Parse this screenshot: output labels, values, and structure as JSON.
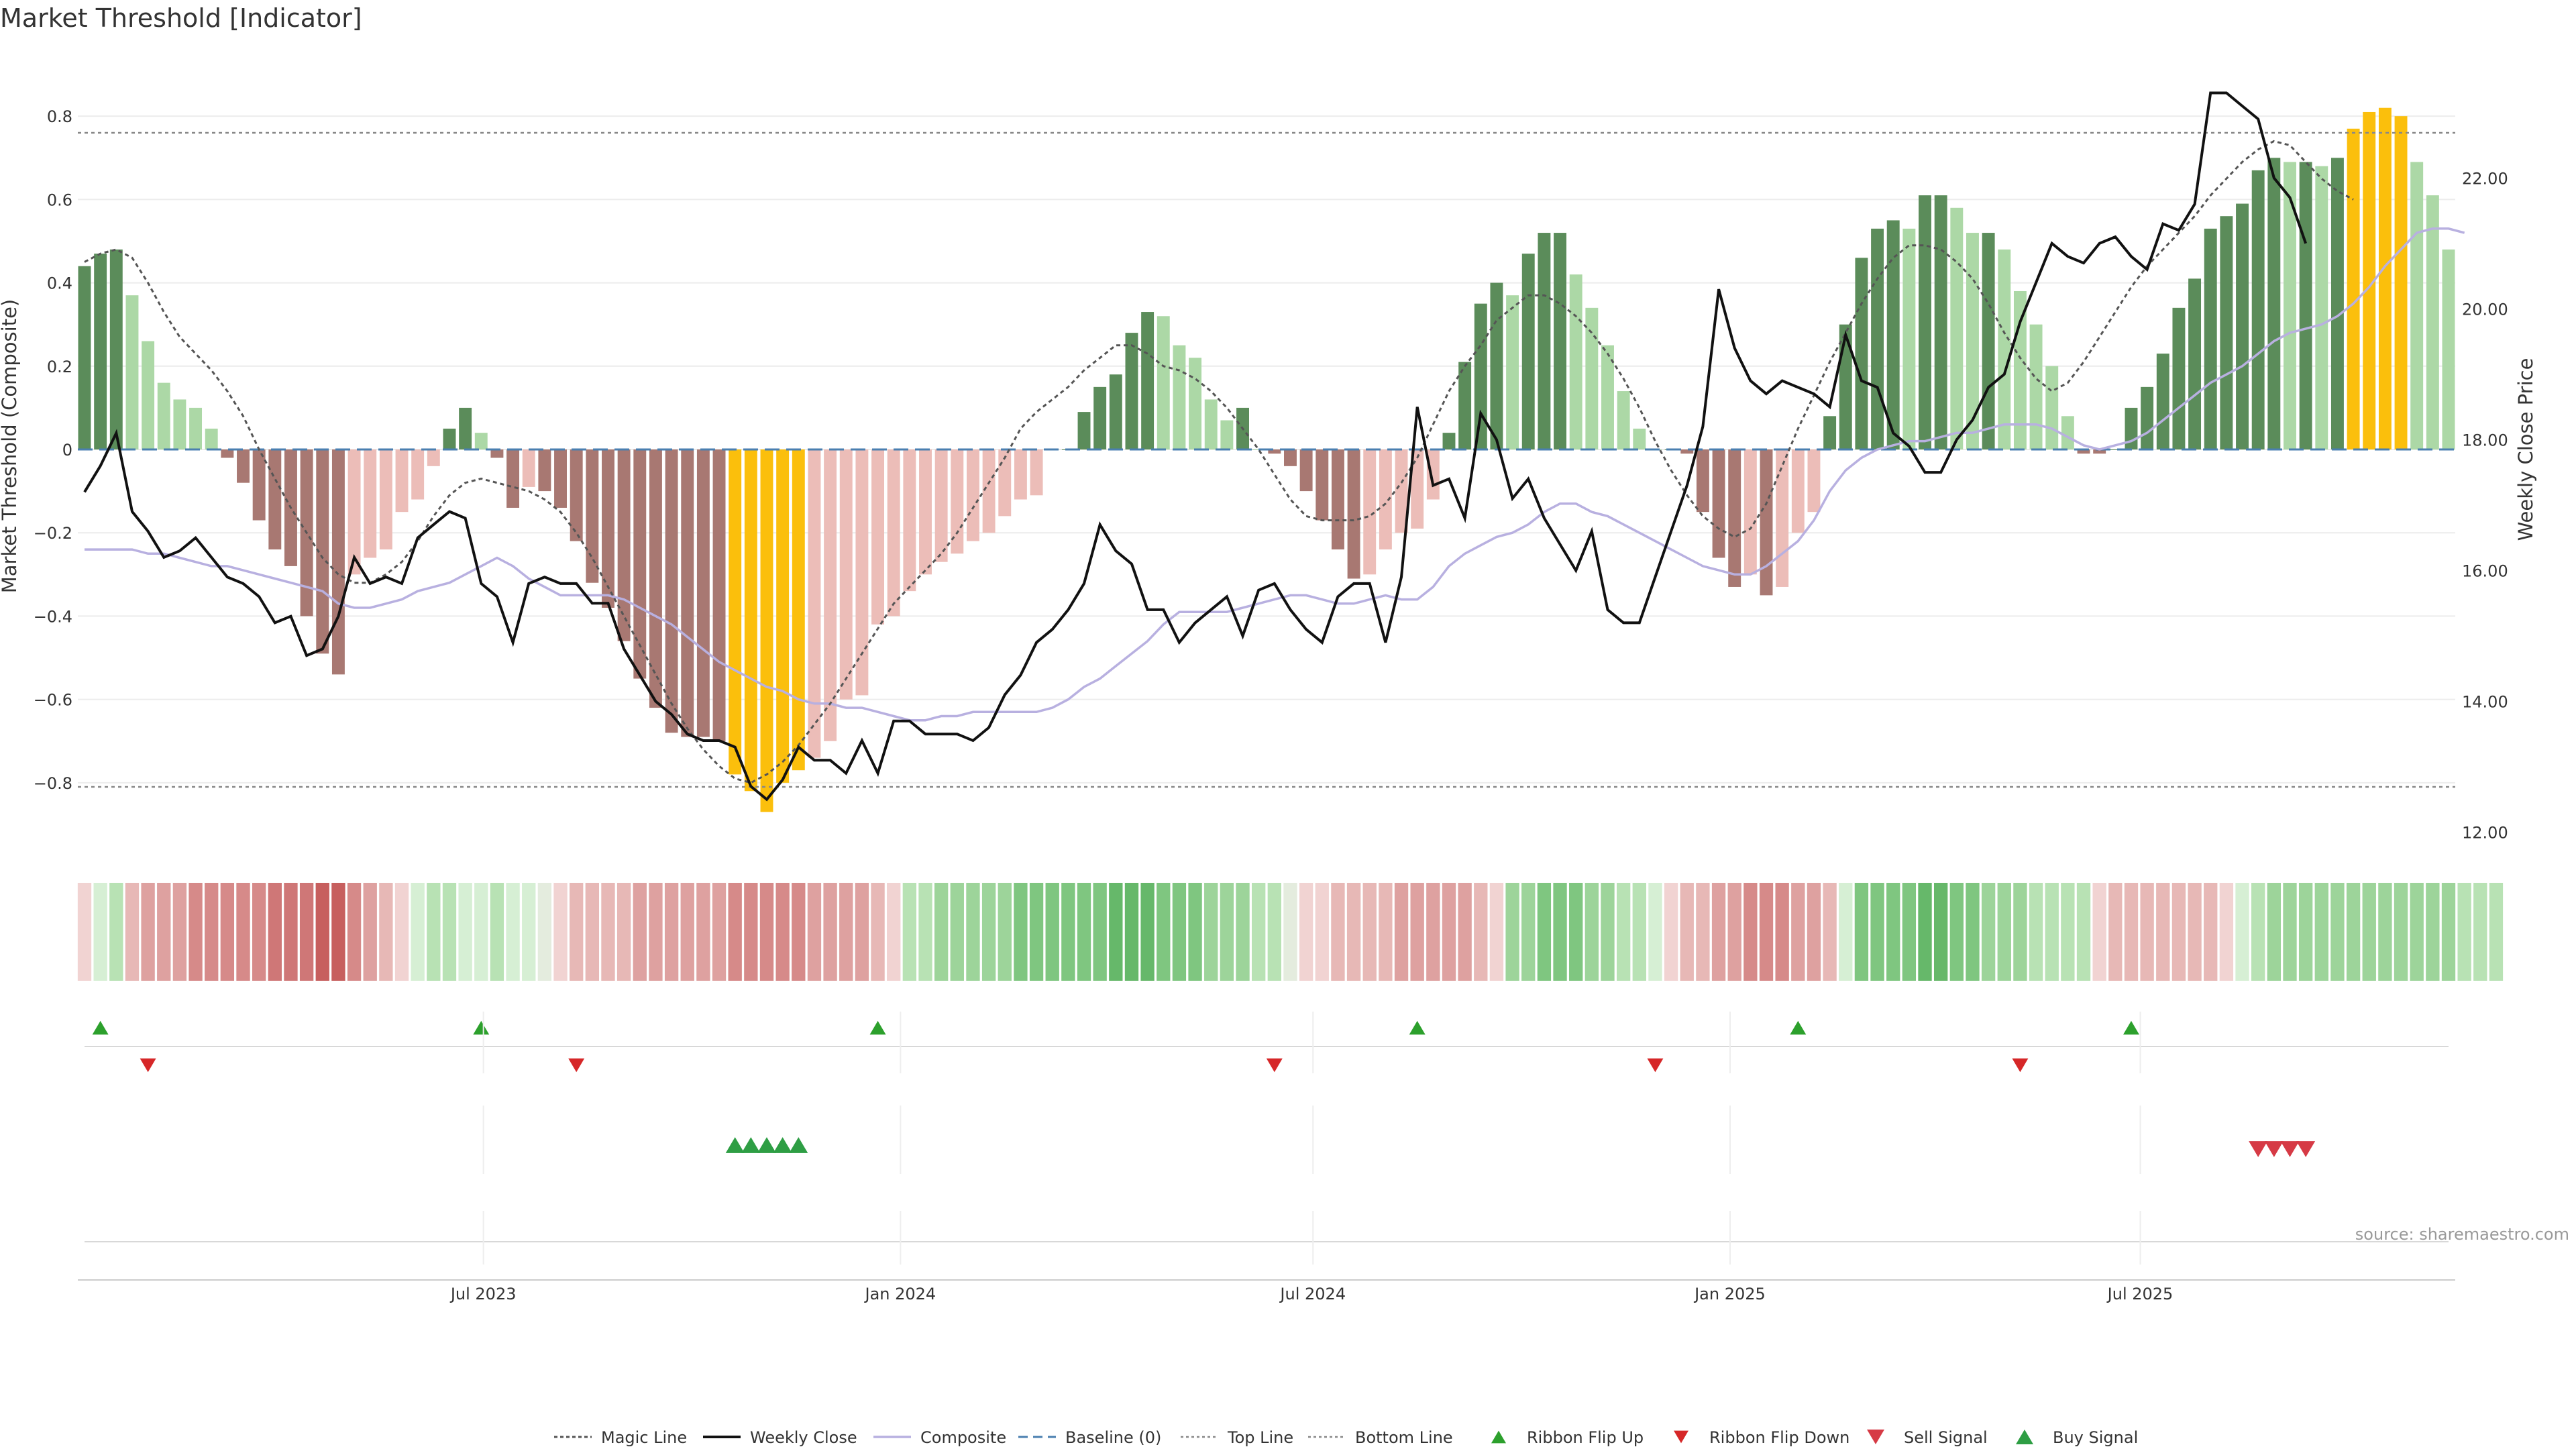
{
  "title": "Market Threshold [Indicator]",
  "source": "source: sharemaestro.com",
  "colors": {
    "magic": "#555555",
    "close": "#111111",
    "composite": "#b8b0e0",
    "baseline": "#4a7fb0",
    "threshold": "#888888",
    "pos_strong": "#5b8c5a",
    "pos_weak": "#acd8a6",
    "neg_strong": "#a87872",
    "neg_weak": "#ecbdb8",
    "extreme": "#fbbf0c",
    "flip_up": "#2ca02c",
    "flip_down": "#d62728",
    "sell": "#d63a45",
    "buy": "#2e9e44"
  },
  "chart_data": {
    "type": "bar",
    "x_start": "2023-01-06",
    "x_step_days": 7,
    "x_ticks": [
      "Jul 2023",
      "Jan 2024",
      "Jul 2024",
      "Jan 2025",
      "Jul 2025"
    ],
    "x_tick_dates": [
      "2023-07-01",
      "2024-01-01",
      "2024-07-01",
      "2025-01-01",
      "2025-07-01"
    ],
    "left_axis": {
      "label": "Market Threshold (Composite)",
      "ylim": [
        -0.95,
        0.95
      ],
      "ticks": [
        "0.8",
        "0.6",
        "0.4",
        "0.2",
        "0",
        "−0.2",
        "−0.4",
        "−0.6",
        "−0.8"
      ],
      "tick_values": [
        0.8,
        0.6,
        0.4,
        0.2,
        0,
        -0.2,
        -0.4,
        -0.6,
        -0.8
      ]
    },
    "right_axis": {
      "label": "Weekly Close Price",
      "ylim": [
        11.8,
        23.9
      ],
      "ticks": [
        "22.00",
        "20.00",
        "18.00",
        "16.00",
        "14.00",
        "12.00"
      ],
      "tick_values": [
        22,
        20,
        18,
        16,
        14,
        12
      ]
    },
    "top_line": 0.76,
    "bottom_line": -0.81,
    "baseline": 0,
    "composite_bars": [
      0.44,
      0.47,
      0.48,
      0.37,
      0.26,
      0.16,
      0.12,
      0.1,
      0.05,
      -0.02,
      -0.08,
      -0.17,
      -0.24,
      -0.28,
      -0.4,
      -0.49,
      -0.54,
      -0.3,
      -0.26,
      -0.24,
      -0.15,
      -0.12,
      -0.04,
      0.05,
      0.1,
      0.04,
      -0.02,
      -0.14,
      -0.09,
      -0.1,
      -0.14,
      -0.22,
      -0.32,
      -0.38,
      -0.46,
      -0.55,
      -0.62,
      -0.68,
      -0.69,
      -0.69,
      -0.7,
      -0.78,
      -0.82,
      -0.87,
      -0.8,
      -0.77,
      -0.74,
      -0.7,
      -0.6,
      -0.59,
      -0.42,
      -0.4,
      -0.34,
      -0.3,
      -0.27,
      -0.25,
      -0.22,
      -0.2,
      -0.16,
      -0.12,
      -0.11,
      0,
      0,
      0.09,
      0.15,
      0.18,
      0.28,
      0.33,
      0.32,
      0.25,
      0.22,
      0.12,
      0.07,
      0.1,
      0,
      -0.01,
      -0.04,
      -0.1,
      -0.17,
      -0.24,
      -0.31,
      -0.3,
      -0.24,
      -0.2,
      -0.19,
      -0.12,
      0.04,
      0.21,
      0.35,
      0.4,
      0.37,
      0.47,
      0.52,
      0.52,
      0.42,
      0.34,
      0.25,
      0.14,
      0.05,
      0,
      0,
      -0.01,
      -0.15,
      -0.26,
      -0.33,
      -0.3,
      -0.35,
      -0.33,
      -0.2,
      -0.15,
      0.08,
      0.3,
      0.46,
      0.53,
      0.55,
      0.53,
      0.61,
      0.61,
      0.58,
      0.52,
      0.52,
      0.48,
      0.38,
      0.3,
      0.2,
      0.08,
      -0.01,
      -0.01,
      0,
      0.1,
      0.15,
      0.23,
      0.34,
      0.41,
      0.53,
      0.56,
      0.59,
      0.67,
      0.7,
      0.69,
      0.69,
      0.68,
      0.7,
      0.77,
      0.81,
      0.82,
      0.8,
      0.69,
      0.61,
      0.48
    ],
    "weekly_close": [
      17.2,
      17.6,
      18.1,
      16.9,
      16.6,
      16.2,
      16.3,
      16.5,
      16.2,
      15.9,
      15.8,
      15.6,
      15.2,
      15.3,
      14.7,
      14.8,
      15.3,
      16.2,
      15.8,
      15.9,
      15.8,
      16.5,
      16.7,
      16.9,
      16.8,
      15.8,
      15.6,
      14.9,
      15.8,
      15.9,
      15.8,
      15.8,
      15.5,
      15.5,
      14.8,
      14.4,
      14.0,
      13.8,
      13.5,
      13.4,
      13.4,
      13.3,
      12.7,
      12.5,
      12.8,
      13.3,
      13.1,
      13.1,
      12.9,
      13.4,
      12.9,
      13.7,
      13.7,
      13.5,
      13.5,
      13.5,
      13.4,
      13.6,
      14.1,
      14.4,
      14.9,
      15.1,
      15.4,
      15.8,
      16.7,
      16.3,
      16.1,
      15.4,
      15.4,
      14.9,
      15.2,
      15.4,
      15.6,
      15.0,
      15.7,
      15.8,
      15.4,
      15.1,
      14.9,
      15.6,
      15.8,
      15.8,
      14.9,
      15.9,
      18.5,
      17.3,
      17.4,
      16.8,
      18.4,
      18.0,
      17.1,
      17.4,
      16.8,
      16.4,
      16.0,
      16.6,
      15.4,
      15.2,
      15.2,
      15.9,
      16.6,
      17.3,
      18.2,
      20.3,
      19.4,
      18.9,
      18.7,
      18.9,
      18.8,
      18.7,
      18.5,
      19.6,
      18.9,
      18.8,
      18.1,
      17.9,
      17.5,
      17.5,
      18.0,
      18.3,
      18.8,
      19.0,
      19.8,
      20.4,
      21.0,
      20.8,
      20.7,
      21.0,
      21.1,
      20.8,
      20.6,
      21.3,
      21.2,
      21.6,
      23.3,
      23.3,
      23.1,
      22.9,
      22.0,
      21.7,
      21.0
    ],
    "composite_line": [
      -0.24,
      -0.24,
      -0.24,
      -0.24,
      -0.25,
      -0.25,
      -0.26,
      -0.27,
      -0.28,
      -0.28,
      -0.29,
      -0.3,
      -0.31,
      -0.32,
      -0.33,
      -0.34,
      -0.37,
      -0.38,
      -0.38,
      -0.37,
      -0.36,
      -0.34,
      -0.33,
      -0.32,
      -0.3,
      -0.28,
      -0.26,
      -0.28,
      -0.31,
      -0.33,
      -0.35,
      -0.35,
      -0.35,
      -0.35,
      -0.36,
      -0.38,
      -0.4,
      -0.42,
      -0.45,
      -0.48,
      -0.51,
      -0.53,
      -0.55,
      -0.57,
      -0.58,
      -0.6,
      -0.61,
      -0.61,
      -0.62,
      -0.62,
      -0.63,
      -0.64,
      -0.65,
      -0.65,
      -0.64,
      -0.64,
      -0.63,
      -0.63,
      -0.63,
      -0.63,
      -0.63,
      -0.62,
      -0.6,
      -0.57,
      -0.55,
      -0.52,
      -0.49,
      -0.46,
      -0.42,
      -0.39,
      -0.39,
      -0.39,
      -0.39,
      -0.38,
      -0.37,
      -0.36,
      -0.35,
      -0.35,
      -0.36,
      -0.37,
      -0.37,
      -0.36,
      -0.35,
      -0.36,
      -0.36,
      -0.33,
      -0.28,
      -0.25,
      -0.23,
      -0.21,
      -0.2,
      -0.18,
      -0.15,
      -0.13,
      -0.13,
      -0.15,
      -0.16,
      -0.18,
      -0.2,
      -0.22,
      -0.24,
      -0.26,
      -0.28,
      -0.29,
      -0.3,
      -0.3,
      -0.28,
      -0.25,
      -0.22,
      -0.17,
      -0.1,
      -0.05,
      -0.02,
      0,
      0.01,
      0.02,
      0.02,
      0.03,
      0.04,
      0.04,
      0.05,
      0.06,
      0.06,
      0.06,
      0.05,
      0.03,
      0.01,
      0,
      0.01,
      0.02,
      0.04,
      0.07,
      0.1,
      0.13,
      0.16,
      0.18,
      0.2,
      0.23,
      0.26,
      0.28,
      0.29,
      0.3,
      0.32,
      0.35,
      0.39,
      0.44,
      0.48,
      0.52,
      0.53,
      0.53,
      0.52
    ],
    "magic_line": [
      0.45,
      0.47,
      0.48,
      0.46,
      0.4,
      0.33,
      0.27,
      0.23,
      0.19,
      0.14,
      0.08,
      0.0,
      -0.07,
      -0.14,
      -0.2,
      -0.26,
      -0.3,
      -0.32,
      -0.32,
      -0.3,
      -0.27,
      -0.22,
      -0.16,
      -0.11,
      -0.08,
      -0.07,
      -0.08,
      -0.09,
      -0.1,
      -0.12,
      -0.15,
      -0.2,
      -0.26,
      -0.33,
      -0.4,
      -0.47,
      -0.54,
      -0.61,
      -0.67,
      -0.72,
      -0.76,
      -0.79,
      -0.8,
      -0.78,
      -0.75,
      -0.71,
      -0.66,
      -0.61,
      -0.55,
      -0.49,
      -0.43,
      -0.37,
      -0.33,
      -0.29,
      -0.25,
      -0.2,
      -0.14,
      -0.08,
      -0.02,
      0.05,
      0.09,
      0.12,
      0.15,
      0.19,
      0.22,
      0.25,
      0.25,
      0.23,
      0.2,
      0.19,
      0.17,
      0.14,
      0.1,
      0.05,
      0.0,
      -0.06,
      -0.12,
      -0.16,
      -0.17,
      -0.17,
      -0.17,
      -0.16,
      -0.13,
      -0.08,
      -0.02,
      0.06,
      0.14,
      0.2,
      0.25,
      0.31,
      0.34,
      0.37,
      0.37,
      0.35,
      0.32,
      0.28,
      0.23,
      0.17,
      0.1,
      0.02,
      -0.05,
      -0.11,
      -0.16,
      -0.19,
      -0.21,
      -0.19,
      -0.13,
      -0.04,
      0.05,
      0.13,
      0.21,
      0.28,
      0.35,
      0.41,
      0.46,
      0.49,
      0.49,
      0.48,
      0.45,
      0.41,
      0.35,
      0.28,
      0.22,
      0.17,
      0.14,
      0.16,
      0.21,
      0.27,
      0.33,
      0.39,
      0.44,
      0.48,
      0.52,
      0.56,
      0.61,
      0.65,
      0.69,
      0.72,
      0.74,
      0.73,
      0.69,
      0.65,
      0.62,
      0.6
    ],
    "ribbon_levels": [
      -1,
      1,
      2,
      -2,
      -3,
      -3,
      -3,
      -4,
      -4,
      -4,
      -4,
      -4,
      -5,
      -5,
      -5,
      -6,
      -6,
      -4,
      -3,
      -2,
      -1,
      1,
      2,
      2,
      1,
      1,
      2,
      1,
      1,
      0,
      -1,
      -2,
      -2,
      -2,
      -2,
      -3,
      -3,
      -3,
      -3,
      -3,
      -3,
      -4,
      -4,
      -4,
      -4,
      -4,
      -3,
      -3,
      -3,
      -3,
      -2,
      -1,
      2,
      2,
      3,
      3,
      3,
      3,
      3,
      4,
      4,
      4,
      4,
      4,
      4,
      5,
      5,
      5,
      4,
      4,
      4,
      3,
      3,
      3,
      2,
      2,
      0,
      -1,
      -1,
      -2,
      -2,
      -2,
      -2,
      -3,
      -3,
      -3,
      -3,
      -3,
      -2,
      -1,
      3,
      3,
      4,
      4,
      4,
      3,
      3,
      2,
      2,
      1,
      -1,
      -2,
      -2,
      -3,
      -3,
      -4,
      -4,
      -4,
      -3,
      -3,
      -2,
      1,
      4,
      4,
      4,
      4,
      5,
      5,
      4,
      4,
      3,
      3,
      3,
      2,
      2,
      2,
      2,
      -1,
      -2,
      -2,
      -2,
      -2,
      -2,
      -2,
      -2,
      -1,
      1,
      2,
      3,
      3,
      3,
      3,
      3,
      3,
      3,
      3,
      3,
      3,
      3,
      3,
      2,
      2,
      2
    ],
    "ribbon_flip_up": [
      1,
      25,
      50,
      84,
      108,
      129
    ],
    "ribbon_flip_down": [
      4,
      31,
      75,
      99,
      122
    ],
    "buy_signals": [
      41,
      42,
      43,
      44,
      45
    ],
    "sell_signals": [
      137,
      138,
      139,
      140
    ],
    "legend": [
      "Magic Line",
      "Weekly Close",
      "Composite",
      "Baseline (0)",
      "Top Line",
      "Bottom Line",
      "Ribbon Flip Up",
      "Ribbon Flip Down",
      "Sell Signal",
      "Buy Signal"
    ]
  }
}
